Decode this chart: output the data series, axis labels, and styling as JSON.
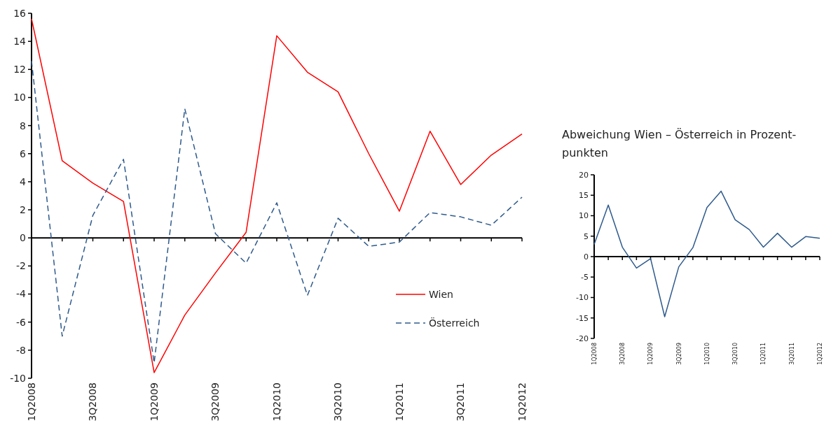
{
  "chart_data": [
    {
      "type": "line",
      "categories": [
        "1Q2008",
        null,
        "3Q2008",
        null,
        "1Q2009",
        null,
        "3Q2009",
        null,
        "1Q2010",
        null,
        "3Q2010",
        null,
        "1Q2011",
        null,
        "3Q2011",
        null,
        "1Q2012"
      ],
      "series": [
        {
          "name": "Wien",
          "color": "#ff0000",
          "line_style": "solid",
          "values": [
            15.6,
            5.5,
            3.9,
            2.6,
            -9.6,
            -5.5,
            -2.5,
            0.4,
            14.4,
            11.8,
            10.4,
            6.0,
            1.9,
            7.6,
            3.8,
            5.9,
            7.4
          ]
        },
        {
          "name": "Österreich",
          "color": "#2e5a8c",
          "line_style": "dashed",
          "values": [
            12.6,
            -7.0,
            1.6,
            5.6,
            -8.9,
            9.2,
            0.3,
            -1.8,
            2.5,
            -4.1,
            1.4,
            -0.6,
            -0.3,
            1.8,
            1.5,
            0.9,
            2.9
          ]
        }
      ],
      "ylim": [
        -10,
        16
      ],
      "yticks": [
        -10,
        -8,
        -6,
        -4,
        -2,
        0,
        2,
        4,
        6,
        8,
        10,
        12,
        14,
        16
      ],
      "legend": "bottom right",
      "marker": "none"
    },
    {
      "type": "line",
      "title": "Abweichung Wien – Österreich in Prozent-punkten",
      "categories": [
        "1Q2008",
        null,
        "3Q2008",
        null,
        "1Q2009",
        null,
        "3Q2009",
        null,
        "1Q2010",
        null,
        "3Q2010",
        null,
        "1Q2011",
        null,
        "3Q2011",
        null,
        "1Q2012"
      ],
      "series": [
        {
          "color": "#2e5a8c",
          "line_style": "solid",
          "values": [
            3.0,
            12.6,
            2.3,
            -2.8,
            -0.5,
            -14.7,
            -2.5,
            2.2,
            12.0,
            16.0,
            9.0,
            6.6,
            2.3,
            5.7,
            2.3,
            4.9,
            4.5
          ]
        }
      ],
      "ylim": [
        -20,
        20
      ],
      "yticks": [
        -20,
        -15,
        -10,
        -5,
        0,
        5,
        10,
        15,
        20
      ],
      "legend": false,
      "marker": "none"
    }
  ]
}
